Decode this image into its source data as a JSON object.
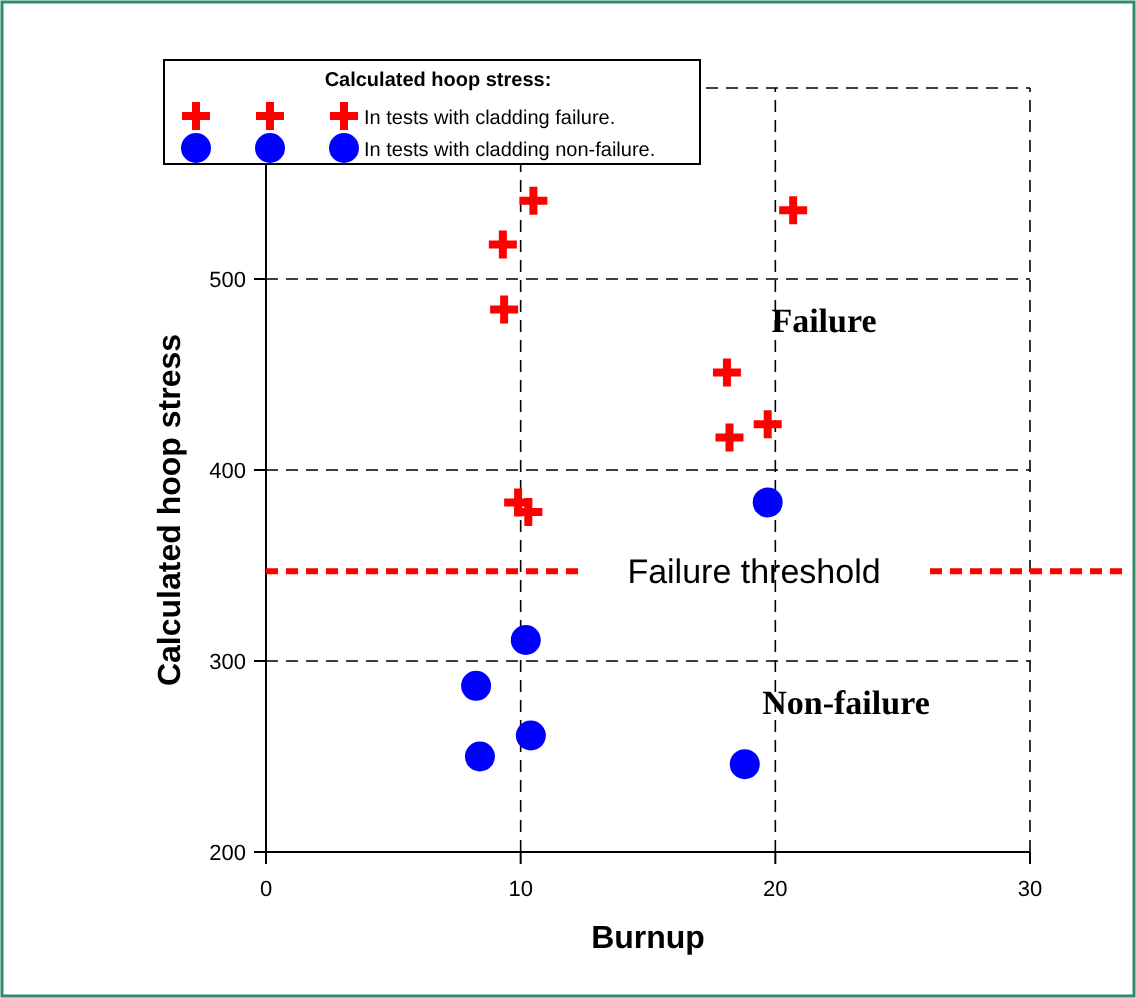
{
  "chart_data": {
    "type": "scatter",
    "xlabel": "Burnup",
    "ylabel": "Calculated hoop stress",
    "legend_title": "Calculated hoop stress:",
    "legend": "top",
    "xlim": [
      0,
      30
    ],
    "xticks": [
      0,
      10,
      20,
      30
    ],
    "ylim": [
      200,
      600
    ],
    "yticks": [
      200,
      300,
      400,
      500
    ],
    "grid": true,
    "series": [
      {
        "name": "In tests with cladding failure.",
        "color": "#ff0000",
        "marker": "cross",
        "x": [
          10.5,
          9.3,
          9.35,
          9.9,
          10.3,
          20.7,
          18.1,
          18.2,
          19.7
        ],
        "values": [
          541,
          518,
          484,
          383,
          378,
          536,
          451,
          417,
          424
        ]
      },
      {
        "name": "In tests with cladding non-failure.",
        "color": "#0000ff",
        "marker": "circle",
        "x": [
          19.7,
          10.2,
          8.25,
          8.4,
          10.4,
          18.8
        ],
        "values": [
          383,
          311,
          287,
          250,
          261,
          246
        ]
      }
    ],
    "ref_lines": [
      {
        "axis": "y",
        "value": 347,
        "label": "Failure threshold",
        "color": "#ff0000",
        "line_style": "dashed"
      }
    ],
    "annotations": [
      "Failure",
      "Non-failure"
    ]
  }
}
